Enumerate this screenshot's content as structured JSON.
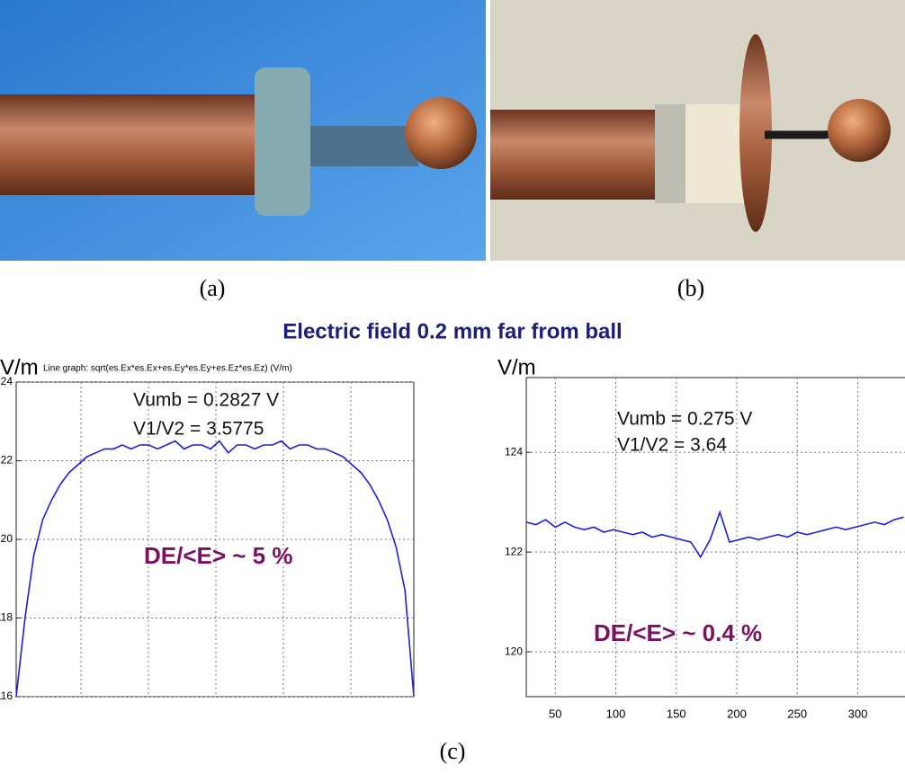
{
  "captions": [
    "(a)",
    "(b)",
    "(c)"
  ],
  "figure_title": "Electric field 0.2 mm far from ball",
  "chart_data": [
    {
      "type": "line",
      "y_label": "V/m",
      "subtitle": "Line graph: sqrt(es.Ex*es.Ex+es.Ey*es.Ey+es.Ez*es.Ez) (V/m)",
      "annotations": [
        "Vumb = 0.2827 V",
        "V1/V2 = 3.5775",
        "DE/<E> ~ 5 %"
      ],
      "color": "#1f1fd6",
      "grid": true,
      "ylim": [
        116,
        124
      ],
      "yticks": [
        116,
        118,
        120,
        122,
        124
      ],
      "values": [
        116.0,
        118.0,
        119.6,
        120.5,
        121.0,
        121.4,
        121.7,
        121.9,
        122.1,
        122.2,
        122.3,
        122.3,
        122.4,
        122.3,
        122.4,
        122.4,
        122.3,
        122.4,
        122.5,
        122.3,
        122.4,
        122.4,
        122.3,
        122.5,
        122.2,
        122.4,
        122.4,
        122.3,
        122.4,
        122.4,
        122.5,
        122.3,
        122.4,
        122.4,
        122.3,
        122.3,
        122.2,
        122.1,
        121.9,
        121.7,
        121.4,
        121.0,
        120.5,
        119.8,
        118.7,
        116.0
      ]
    },
    {
      "type": "line",
      "y_label": "V/m",
      "annotations": [
        "Vumb = 0.275 V",
        "V1/V2 = 3.64",
        "DE/<E> ~ 0.4 %"
      ],
      "color": "#1f1fd6",
      "grid": true,
      "xlim": [
        26,
        342
      ],
      "xticks": [
        50,
        100,
        150,
        200,
        250,
        300
      ],
      "ylim": [
        119.1,
        125.5
      ],
      "yticks": [
        120,
        122,
        124
      ],
      "x": [
        26,
        34,
        42,
        50,
        58,
        66,
        74,
        82,
        90,
        98,
        106,
        114,
        122,
        130,
        138,
        146,
        154,
        162,
        170,
        178,
        186,
        194,
        202,
        210,
        218,
        226,
        234,
        242,
        250,
        258,
        266,
        274,
        282,
        290,
        298,
        306,
        314,
        322,
        330,
        338
      ],
      "values": [
        122.6,
        122.55,
        122.65,
        122.5,
        122.6,
        122.5,
        122.45,
        122.5,
        122.4,
        122.45,
        122.4,
        122.35,
        122.4,
        122.3,
        122.35,
        122.3,
        122.25,
        122.2,
        121.9,
        122.25,
        122.8,
        122.2,
        122.25,
        122.3,
        122.25,
        122.3,
        122.35,
        122.3,
        122.4,
        122.35,
        122.4,
        122.45,
        122.5,
        122.45,
        122.5,
        122.55,
        122.6,
        122.55,
        122.65,
        122.7
      ]
    }
  ]
}
